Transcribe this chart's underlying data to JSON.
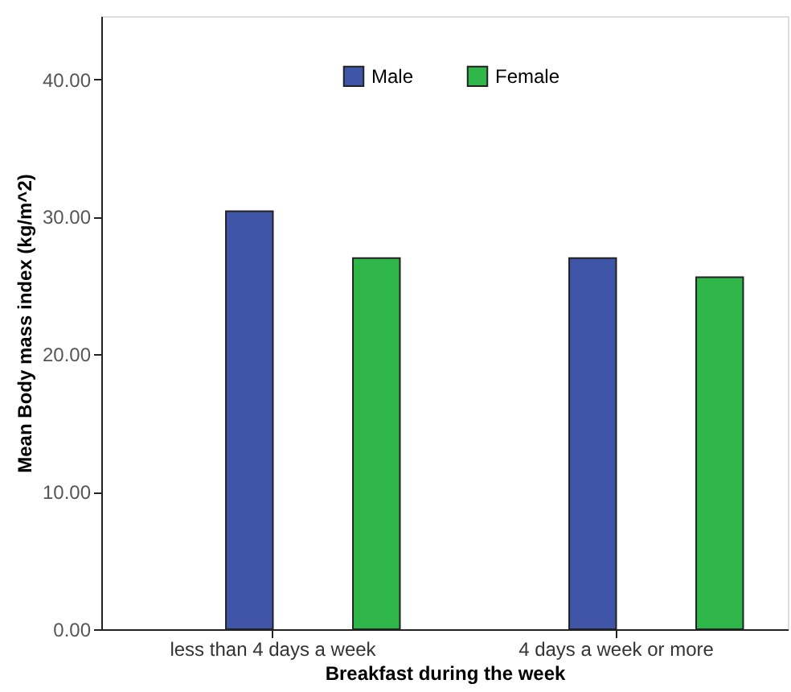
{
  "chart_data": {
    "type": "bar",
    "xlabel": "Breakfast during the week",
    "ylabel": "Mean Body mass index (kg/m^2)",
    "categories": [
      "less than 4 days a week",
      "4 days a week or more"
    ],
    "series": [
      {
        "name": "Male",
        "color": "#3f55a8",
        "values": [
          30.4,
          27.0
        ]
      },
      {
        "name": "Female",
        "color": "#2fb648",
        "values": [
          27.0,
          25.6
        ]
      }
    ],
    "ylim": [
      0,
      44.6
    ],
    "yticks": [
      {
        "value": 0,
        "label": "0.00"
      },
      {
        "value": 10,
        "label": "10.00"
      },
      {
        "value": 20,
        "label": "20.00"
      },
      {
        "value": 30,
        "label": "30.00"
      },
      {
        "value": 40,
        "label": "40.00"
      }
    ],
    "grid": false,
    "legend": "top"
  }
}
